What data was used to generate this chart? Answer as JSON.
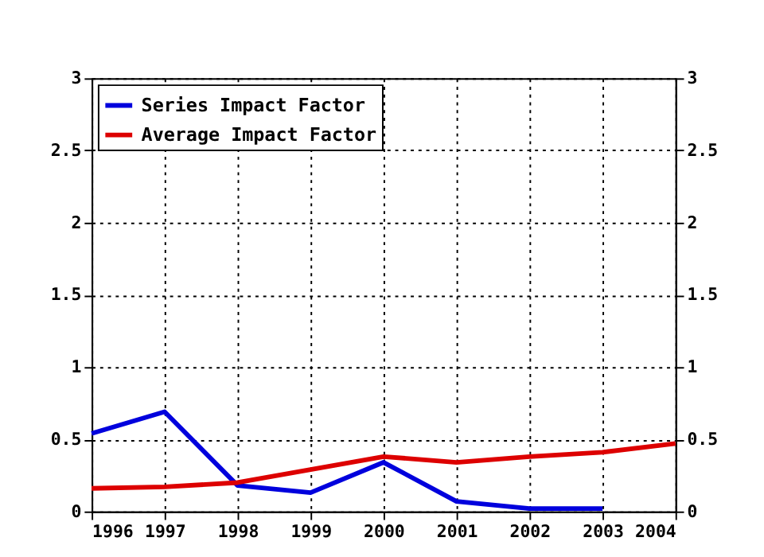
{
  "chart_data": {
    "type": "line",
    "x": [
      1996,
      1997,
      1998,
      1999,
      2000,
      2001,
      2002,
      2003,
      2004
    ],
    "series": [
      {
        "name": "Series Impact Factor",
        "color": "#0000dd",
        "values": [
          0.54,
          0.69,
          0.18,
          0.13,
          0.34,
          0.07,
          0.02,
          0.02,
          null
        ]
      },
      {
        "name": "Average Impact Factor",
        "color": "#dd0000",
        "values": [
          0.16,
          0.17,
          0.2,
          0.29,
          0.38,
          0.34,
          0.38,
          0.41,
          0.47
        ]
      }
    ],
    "xlim": [
      1996,
      2004
    ],
    "xticks": [
      1996,
      1997,
      1998,
      1999,
      2000,
      2001,
      2002,
      2003,
      2004
    ],
    "ylim": [
      0,
      3
    ],
    "yticks": [
      0,
      0.5,
      1,
      1.5,
      2,
      2.5,
      3
    ],
    "y2lim": [
      0,
      3
    ],
    "y2ticks": [
      0,
      0.5,
      1,
      1.5,
      2,
      2.5,
      3
    ],
    "grid": true,
    "legend": "top left",
    "marker": "none",
    "line_style": "solid"
  }
}
